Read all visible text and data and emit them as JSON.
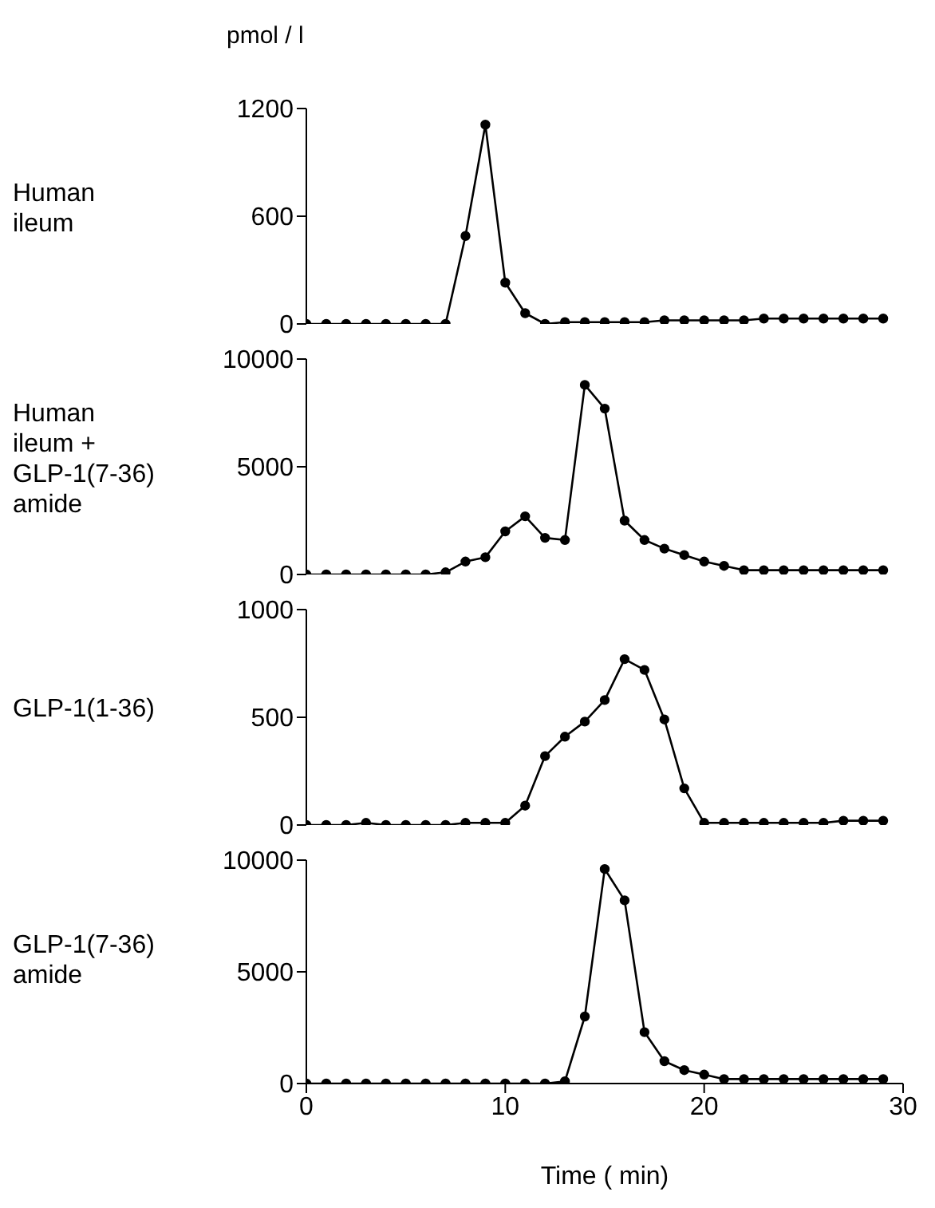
{
  "chart_data": [
    {
      "type": "line",
      "title": "Human\nileum",
      "ylabel": "pmol / l",
      "color": "#000000",
      "marker": "circle",
      "line_style": "solid",
      "x": [
        0,
        1,
        2,
        3,
        4,
        5,
        6,
        7,
        8,
        9,
        10,
        11,
        12,
        13,
        14,
        15,
        16,
        17,
        18,
        19,
        20,
        21,
        22,
        23,
        24,
        25,
        26,
        27,
        28,
        29
      ],
      "values": [
        0,
        0,
        0,
        0,
        0,
        0,
        0,
        0,
        490,
        1110,
        230,
        60,
        0,
        10,
        10,
        10,
        10,
        10,
        20,
        20,
        20,
        20,
        20,
        30,
        30,
        30,
        30,
        30,
        30,
        30
      ],
      "xlim": [
        0,
        30
      ],
      "ylim": [
        0,
        1200
      ],
      "yticks": [
        0,
        600,
        1200
      ],
      "tick_labels": "y"
    },
    {
      "type": "line",
      "title": "Human\nileum +\nGLP-1(7-36)\namide",
      "color": "#000000",
      "marker": "circle",
      "line_style": "solid",
      "x": [
        0,
        1,
        2,
        3,
        4,
        5,
        6,
        7,
        8,
        9,
        10,
        11,
        12,
        13,
        14,
        15,
        16,
        17,
        18,
        19,
        20,
        21,
        22,
        23,
        24,
        25,
        26,
        27,
        28,
        29
      ],
      "values": [
        0,
        0,
        0,
        0,
        0,
        0,
        0,
        100,
        600,
        800,
        2000,
        2700,
        1700,
        1600,
        8800,
        7700,
        2500,
        1600,
        1200,
        900,
        600,
        400,
        200,
        200,
        200,
        200,
        200,
        200,
        200,
        200
      ],
      "xlim": [
        0,
        30
      ],
      "ylim": [
        0,
        10000
      ],
      "yticks": [
        0,
        5000,
        10000
      ],
      "tick_labels": "y"
    },
    {
      "type": "line",
      "title": "GLP-1(1-36)",
      "color": "#000000",
      "marker": "circle",
      "line_style": "solid",
      "x": [
        0,
        1,
        2,
        3,
        4,
        5,
        6,
        7,
        8,
        9,
        10,
        11,
        12,
        13,
        14,
        15,
        16,
        17,
        18,
        19,
        20,
        21,
        22,
        23,
        24,
        25,
        26,
        27,
        28,
        29
      ],
      "values": [
        0,
        0,
        0,
        10,
        0,
        0,
        0,
        0,
        10,
        10,
        10,
        90,
        320,
        410,
        480,
        580,
        770,
        720,
        490,
        170,
        10,
        10,
        10,
        10,
        10,
        10,
        10,
        20,
        20,
        20
      ],
      "xlim": [
        0,
        30
      ],
      "ylim": [
        0,
        1000
      ],
      "yticks": [
        0,
        500,
        1000
      ],
      "tick_labels": "y"
    },
    {
      "type": "line",
      "title": "GLP-1(7-36)\namide",
      "xlabel": "Time ( min)",
      "color": "#000000",
      "marker": "circle",
      "line_style": "solid",
      "x": [
        0,
        1,
        2,
        3,
        4,
        5,
        6,
        7,
        8,
        9,
        10,
        11,
        12,
        13,
        14,
        15,
        16,
        17,
        18,
        19,
        20,
        21,
        22,
        23,
        24,
        25,
        26,
        27,
        28,
        29
      ],
      "values": [
        0,
        0,
        0,
        0,
        0,
        0,
        0,
        0,
        0,
        0,
        0,
        0,
        0,
        100,
        3000,
        9600,
        8200,
        2300,
        1000,
        600,
        400,
        200,
        200,
        200,
        200,
        200,
        200,
        200,
        200,
        200
      ],
      "xlim": [
        0,
        30
      ],
      "xticks": [
        0,
        10,
        20,
        30
      ],
      "ylim": [
        0,
        10000
      ],
      "yticks": [
        0,
        5000,
        10000
      ]
    }
  ]
}
